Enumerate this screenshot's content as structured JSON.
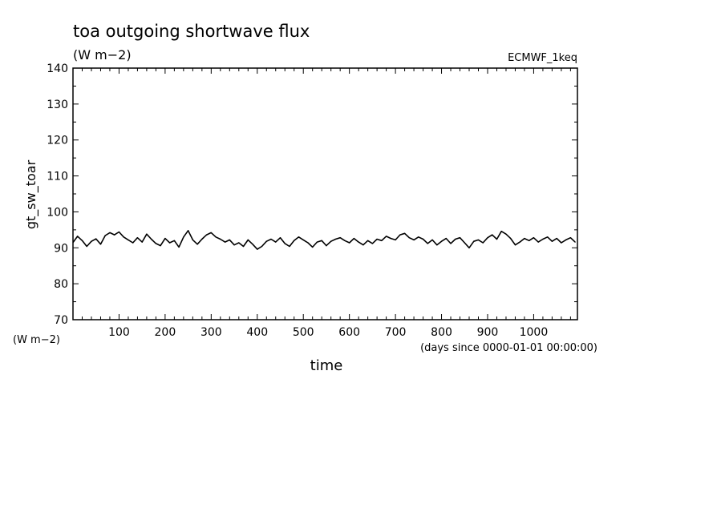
{
  "title": "toa outgoing shortwave flux",
  "units_top": "(W m−2)",
  "dataset": "ECMWF_1keq",
  "y_axis_label": "gt_sw_toar",
  "y_unit_label": "(W m−2)",
  "x_axis_label": "time",
  "x_unit_label": "(days since 0000-01-01 00:00:00)",
  "chart_data": {
    "type": "line",
    "title": "toa outgoing shortwave flux",
    "xlabel": "time",
    "ylabel": "gt_sw_toar",
    "xlim": [
      0,
      1095
    ],
    "ylim": [
      70,
      140
    ],
    "x_ticks": [
      100,
      200,
      300,
      400,
      500,
      600,
      700,
      800,
      900,
      1000
    ],
    "y_ticks": [
      70,
      80,
      90,
      100,
      110,
      120,
      130,
      140
    ],
    "series": [
      {
        "x": [
          0,
          10,
          20,
          30,
          40,
          50,
          60,
          70,
          80,
          90,
          100,
          110,
          120,
          130,
          140,
          150,
          160,
          170,
          180,
          190,
          200,
          210,
          220,
          230,
          240,
          250,
          260,
          270,
          280,
          290,
          300,
          310,
          320,
          330,
          340,
          350,
          360,
          370,
          380,
          390,
          400,
          410,
          420,
          430,
          440,
          450,
          460,
          470,
          480,
          490,
          500,
          510,
          520,
          530,
          540,
          550,
          560,
          570,
          580,
          590,
          600,
          610,
          620,
          630,
          640,
          650,
          660,
          670,
          680,
          690,
          700,
          710,
          720,
          730,
          740,
          750,
          760,
          770,
          780,
          790,
          800,
          810,
          820,
          830,
          840,
          850,
          860,
          870,
          880,
          890,
          900,
          910,
          920,
          930,
          940,
          950,
          960,
          970,
          980,
          990,
          1000,
          1010,
          1020,
          1030,
          1040,
          1050,
          1060,
          1070,
          1080,
          1090
        ],
        "values": [
          91.5,
          93.2,
          92.0,
          90.4,
          91.8,
          92.5,
          91.0,
          93.4,
          94.2,
          93.6,
          94.4,
          93.0,
          92.2,
          91.4,
          92.8,
          91.6,
          93.8,
          92.4,
          91.2,
          90.6,
          92.6,
          91.4,
          92.0,
          90.2,
          93.0,
          94.8,
          92.2,
          91.0,
          92.4,
          93.6,
          94.2,
          93.0,
          92.4,
          91.6,
          92.2,
          90.8,
          91.4,
          90.4,
          92.2,
          91.0,
          89.6,
          90.4,
          91.8,
          92.4,
          91.6,
          92.8,
          91.2,
          90.4,
          92.0,
          93.0,
          92.2,
          91.4,
          90.2,
          91.6,
          92.0,
          90.6,
          91.8,
          92.4,
          92.8,
          92.0,
          91.4,
          92.6,
          91.6,
          90.8,
          92.0,
          91.2,
          92.4,
          92.0,
          93.2,
          92.6,
          92.2,
          93.6,
          94.0,
          92.8,
          92.2,
          93.0,
          92.4,
          91.2,
          92.2,
          90.8,
          91.8,
          92.6,
          91.2,
          92.4,
          92.8,
          91.4,
          90.0,
          91.8,
          92.2,
          91.4,
          92.8,
          93.6,
          92.4,
          94.6,
          93.8,
          92.6,
          90.8,
          91.6,
          92.6,
          92.0,
          92.8,
          91.6,
          92.4,
          93.0,
          91.8,
          92.6,
          91.4,
          92.2,
          92.8,
          91.6
        ]
      }
    ]
  }
}
